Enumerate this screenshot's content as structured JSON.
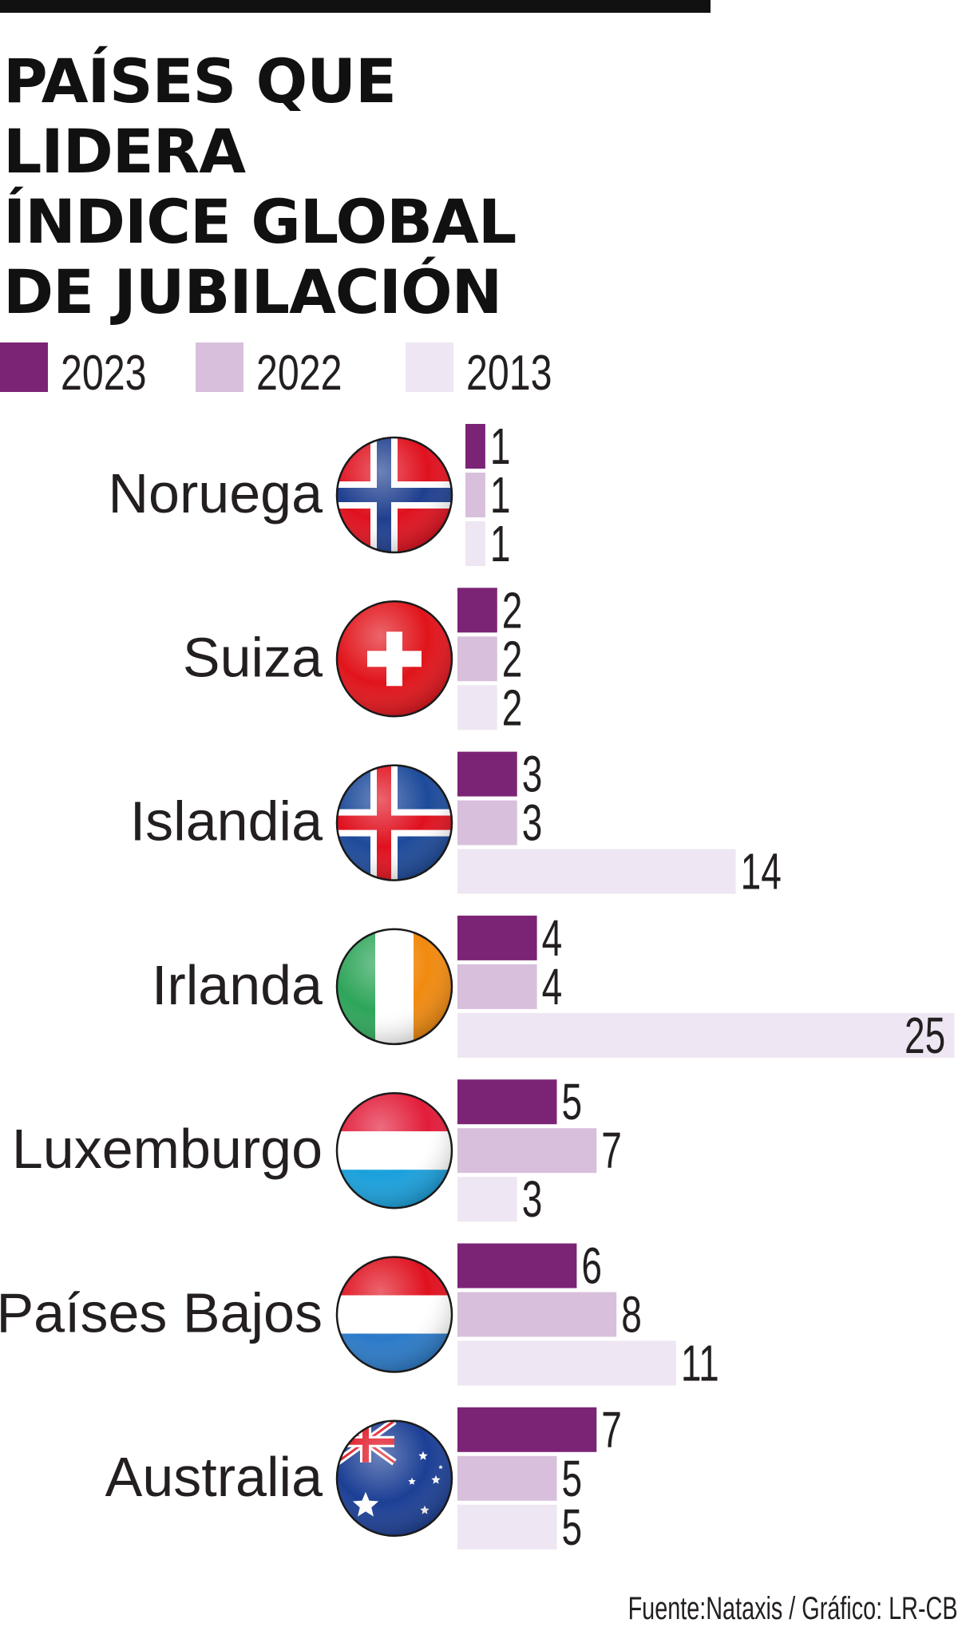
{
  "title_lines": [
    "PAÍSES QUE LIDERA",
    "ÍNDICE GLOBAL",
    "DE JUBILACIÓN"
  ],
  "legend": [
    {
      "label": "2023",
      "color": "#7b2475"
    },
    {
      "label": "2022",
      "color": "#d8bfdc"
    },
    {
      "label": "2013",
      "color": "#eee6f2"
    }
  ],
  "source": "Fuente:Nataxis  / Gráfico: LR-CB",
  "chart_data": {
    "type": "bar",
    "orientation": "horizontal",
    "categories": [
      "Noruega",
      "Suiza",
      "Islandia",
      "Irlanda",
      "Luxemburgo",
      "Países Bajos",
      "Australia"
    ],
    "series": [
      {
        "name": "2023",
        "color": "#7b2475",
        "values": [
          1,
          2,
          3,
          4,
          5,
          6,
          7
        ]
      },
      {
        "name": "2022",
        "color": "#d8bfdc",
        "values": [
          1,
          2,
          3,
          4,
          7,
          8,
          5
        ]
      },
      {
        "name": "2013",
        "color": "#eee6f2",
        "values": [
          1,
          2,
          14,
          25,
          3,
          11,
          5
        ]
      }
    ],
    "flags": [
      {
        "country": "Noruega",
        "icon": "norway-flag-icon"
      },
      {
        "country": "Suiza",
        "icon": "switzerland-flag-icon"
      },
      {
        "country": "Islandia",
        "icon": "iceland-flag-icon"
      },
      {
        "country": "Irlanda",
        "icon": "ireland-flag-icon"
      },
      {
        "country": "Luxemburgo",
        "icon": "luxembourg-flag-icon"
      },
      {
        "country": "Países Bajos",
        "icon": "netherlands-flag-icon"
      },
      {
        "country": "Australia",
        "icon": "australia-flag-icon"
      }
    ],
    "grid": false,
    "legend_position": "top-left"
  }
}
